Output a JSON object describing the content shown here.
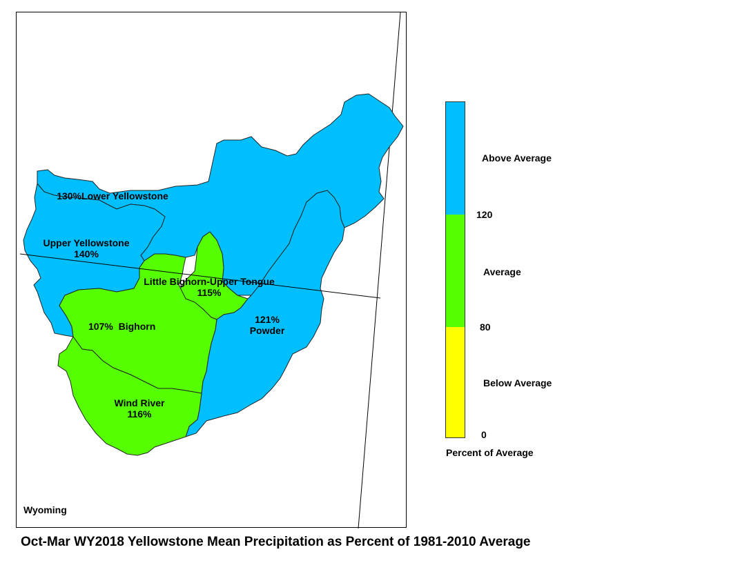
{
  "map": {
    "state_label": "Wyoming",
    "basins": [
      {
        "id": "lower-yellowstone",
        "name": "Lower Yellowstone",
        "percent": "130%",
        "category": "above"
      },
      {
        "id": "upper-yellowstone",
        "name": "Upper Yellowstone",
        "percent": "140%",
        "category": "above"
      },
      {
        "id": "little-bighorn-upper-tongue",
        "name": "Little Bighorn-Upper Tongue",
        "percent": "115%",
        "category": "average"
      },
      {
        "id": "bighorn",
        "name": "Bighorn",
        "percent": "107%",
        "category": "average"
      },
      {
        "id": "powder",
        "name": "Powder",
        "percent": "121%",
        "category": "above"
      },
      {
        "id": "wind-river",
        "name": "Wind River",
        "percent": "116%",
        "category": "average"
      }
    ]
  },
  "legend": {
    "categories": [
      {
        "label": "Above Average",
        "color": "#00bfff"
      },
      {
        "label": "Average",
        "color": "#55ff00"
      },
      {
        "label": "Below Average",
        "color": "#ffff00"
      }
    ],
    "ticks": [
      "120",
      "80",
      "0"
    ],
    "caption": "Percent of Average"
  },
  "colors": {
    "above": "#00bfff",
    "average": "#55ff00",
    "below": "#ffff00",
    "outline": "#222222"
  },
  "title": "Oct-Mar WY2018 Yellowstone Mean Precipitation as Percent of 1981-2010 Average"
}
